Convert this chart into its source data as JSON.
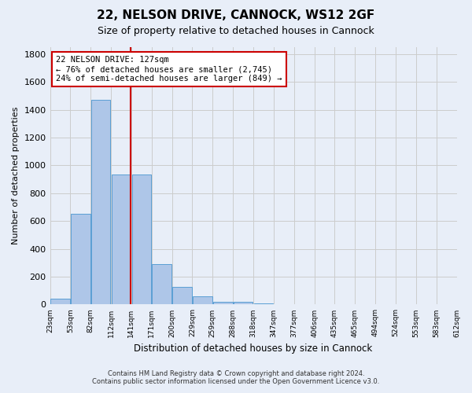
{
  "title": "22, NELSON DRIVE, CANNOCK, WS12 2GF",
  "subtitle": "Size of property relative to detached houses in Cannock",
  "xlabel": "Distribution of detached houses by size in Cannock",
  "ylabel": "Number of detached properties",
  "bar_color": "#aec6e8",
  "bar_edgecolor": "#5a9fd4",
  "bar_values": [
    40,
    650,
    1470,
    935,
    935,
    290,
    125,
    60,
    20,
    20,
    10,
    0,
    0,
    0,
    0,
    0,
    0,
    0,
    0,
    0
  ],
  "bin_labels": [
    "23sqm",
    "53sqm",
    "82sqm",
    "112sqm",
    "141sqm",
    "171sqm",
    "200sqm",
    "229sqm",
    "259sqm",
    "288sqm",
    "318sqm",
    "347sqm",
    "377sqm",
    "406sqm",
    "435sqm",
    "465sqm",
    "494sqm",
    "524sqm",
    "553sqm",
    "583sqm",
    "612sqm"
  ],
  "vline_color": "#cc0000",
  "vline_pos": 3.47,
  "annotation_text": "22 NELSON DRIVE: 127sqm\n← 76% of detached houses are smaller (2,745)\n24% of semi-detached houses are larger (849) →",
  "annotation_box_color": "#ffffff",
  "annotation_box_edgecolor": "#cc0000",
  "ylim": [
    0,
    1850
  ],
  "yticks": [
    0,
    200,
    400,
    600,
    800,
    1000,
    1200,
    1400,
    1600,
    1800
  ],
  "grid_color": "#cccccc",
  "bg_color": "#e8eef8",
  "footer_line1": "Contains HM Land Registry data © Crown copyright and database right 2024.",
  "footer_line2": "Contains public sector information licensed under the Open Government Licence v3.0."
}
